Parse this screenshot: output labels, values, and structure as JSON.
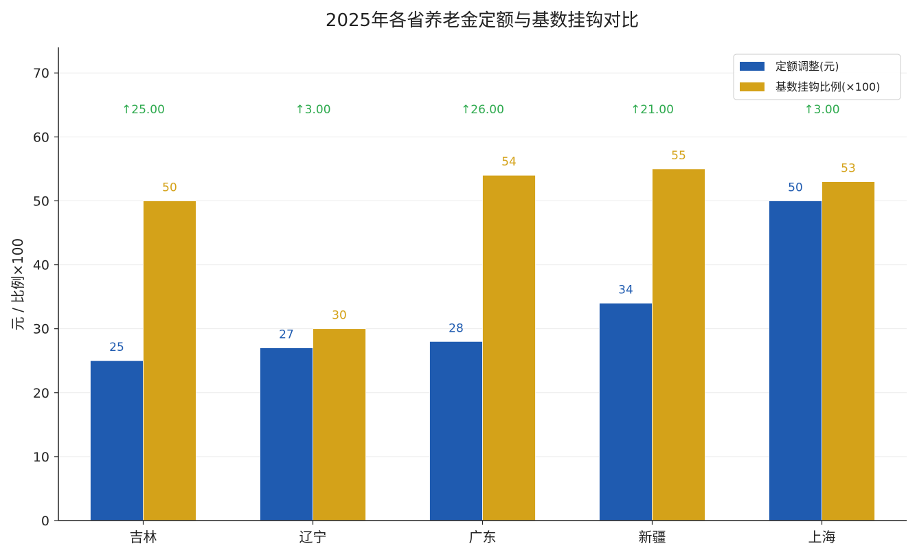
{
  "chart_data": {
    "type": "bar",
    "title": "2025年各省养老金定额与基数挂钩对比",
    "xlabel": "",
    "ylabel": "元 / 比例×100",
    "categories": [
      "吉林",
      "辽宁",
      "广东",
      "新疆",
      "上海"
    ],
    "series": [
      {
        "name": "定额调整(元)",
        "values": [
          25,
          27,
          28,
          34,
          50
        ],
        "color": "#1f5bb0"
      },
      {
        "name": "基数挂钩比例(×100)",
        "values": [
          50,
          30,
          54,
          55,
          53
        ],
        "color": "#d4a219"
      }
    ],
    "annotations": [
      "↑25.00",
      "↑3.00",
      "↑26.00",
      "↑21.00",
      "↑3.00"
    ],
    "annotation_color": "#2eaa4e",
    "ylim": [
      0,
      74
    ],
    "yticks": [
      0,
      10,
      20,
      30,
      40,
      50,
      60,
      70
    ],
    "grid": true,
    "legend_position": "top-right"
  }
}
